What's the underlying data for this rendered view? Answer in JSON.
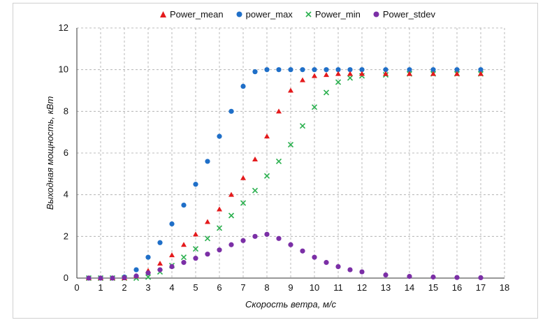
{
  "chart_data": {
    "type": "scatter",
    "xlabel": "Скорость ветра, м/с",
    "ylabel": "Выходная мощность, кВт",
    "xlim": [
      0,
      18
    ],
    "ylim": [
      0,
      12
    ],
    "xticks": [
      "0",
      "1",
      "2",
      "3",
      "4",
      "5",
      "6",
      "7",
      "8",
      "9",
      "10",
      "11",
      "12",
      "13",
      "14",
      "15",
      "16",
      "17",
      "18"
    ],
    "yticks": [
      "0",
      "2",
      "4",
      "6",
      "8",
      "10",
      "12"
    ],
    "grid": true,
    "legend_position": "top",
    "series": [
      {
        "name": "Power_mean",
        "color": "#e41a1c",
        "marker": "triangle",
        "x": [
          0.5,
          1,
          1.5,
          2,
          2.5,
          3,
          3.5,
          4,
          4.5,
          5,
          5.5,
          6,
          6.5,
          7,
          7.5,
          8,
          8.5,
          9,
          9.5,
          10,
          10.5,
          11,
          11.5,
          12,
          13,
          14,
          15,
          16,
          17
        ],
        "y": [
          0,
          0,
          0,
          0,
          0.1,
          0.35,
          0.7,
          1.1,
          1.6,
          2.1,
          2.7,
          3.3,
          4.0,
          4.8,
          5.7,
          6.8,
          8.0,
          9.0,
          9.5,
          9.7,
          9.75,
          9.8,
          9.8,
          9.8,
          9.8,
          9.8,
          9.8,
          9.8,
          9.8
        ]
      },
      {
        "name": "power_max",
        "color": "#1f6fc8",
        "marker": "circle",
        "x": [
          0.5,
          1,
          1.5,
          2,
          2.5,
          3,
          3.5,
          4,
          4.5,
          5,
          5.5,
          6,
          6.5,
          7,
          7.5,
          8,
          8.5,
          9,
          9.5,
          10,
          10.5,
          11,
          11.5,
          12,
          13,
          14,
          15,
          16,
          17
        ],
        "y": [
          0,
          0,
          0,
          0.05,
          0.4,
          1.0,
          1.7,
          2.6,
          3.5,
          4.5,
          5.6,
          6.8,
          8.0,
          9.2,
          9.9,
          10,
          10,
          10,
          10,
          10,
          10,
          10,
          10,
          10,
          10,
          10,
          10,
          10,
          10
        ]
      },
      {
        "name": "Power_min",
        "color": "#2bb04f",
        "marker": "x",
        "x": [
          0.5,
          1,
          1.5,
          2,
          2.5,
          3,
          3.5,
          4,
          4.5,
          5,
          5.5,
          6,
          6.5,
          7,
          7.5,
          8,
          8.5,
          9,
          9.5,
          10,
          10.5,
          11,
          11.5,
          12,
          13,
          14,
          15,
          16,
          17
        ],
        "y": [
          0,
          0,
          0,
          0,
          0,
          0.05,
          0.3,
          0.6,
          1.0,
          1.4,
          1.9,
          2.4,
          3.0,
          3.6,
          4.2,
          4.9,
          5.6,
          6.4,
          7.3,
          8.2,
          8.9,
          9.4,
          9.6,
          9.7,
          9.75,
          9.8,
          9.8,
          9.8,
          9.8
        ]
      },
      {
        "name": "Power_stdev",
        "color": "#7b2fa6",
        "marker": "circle",
        "x": [
          0.5,
          1,
          1.5,
          2,
          2.5,
          3,
          3.5,
          4,
          4.5,
          5,
          5.5,
          6,
          6.5,
          7,
          7.5,
          8,
          8.5,
          9,
          9.5,
          10,
          10.5,
          11,
          11.5,
          12,
          13,
          14,
          15,
          16,
          17
        ],
        "y": [
          0,
          0,
          0,
          0.02,
          0.1,
          0.25,
          0.4,
          0.55,
          0.75,
          0.95,
          1.15,
          1.35,
          1.6,
          1.8,
          2.0,
          2.1,
          1.9,
          1.6,
          1.3,
          1.0,
          0.75,
          0.55,
          0.4,
          0.3,
          0.15,
          0.08,
          0.05,
          0.03,
          0.02
        ]
      }
    ]
  }
}
